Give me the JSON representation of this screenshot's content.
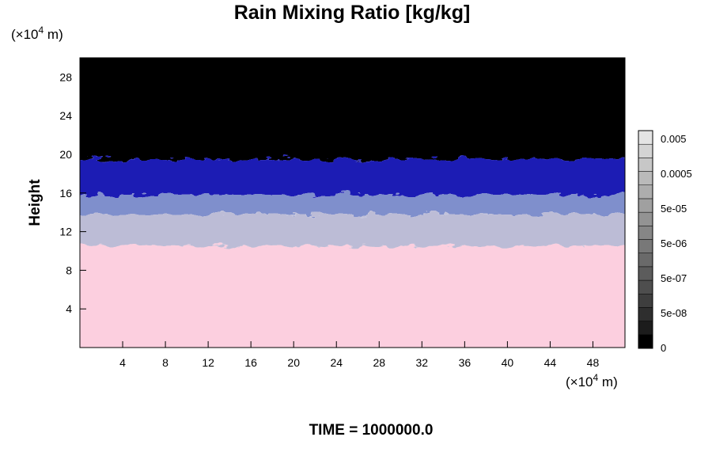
{
  "chart_data": {
    "type": "heatmap",
    "title": "Rain Mixing Ratio [kg/kg]",
    "ylabel": "Height",
    "xlabel": "",
    "x_unit_prefix": "(×10",
    "x_unit_exp": "4",
    "x_unit_suffix": " m)",
    "y_unit_prefix": "(×10",
    "y_unit_exp": "4",
    "y_unit_suffix": " m)",
    "xlim": [
      0,
      51
    ],
    "ylim": [
      0,
      30
    ],
    "x_ticks": [
      "4",
      "8",
      "12",
      "16",
      "20",
      "24",
      "28",
      "32",
      "36",
      "40",
      "44",
      "48"
    ],
    "x_tick_values": [
      4,
      8,
      12,
      16,
      20,
      24,
      28,
      32,
      36,
      40,
      44,
      48
    ],
    "y_ticks": [
      "4",
      "8",
      "12",
      "16",
      "20",
      "24",
      "28"
    ],
    "y_tick_values": [
      4,
      8,
      12,
      16,
      20,
      24,
      28
    ],
    "bands": [
      {
        "y0": 19.5,
        "y1": 30,
        "color": "#000000"
      },
      {
        "y0": 15.8,
        "y1": 19.5,
        "color": "#1a1ab4"
      },
      {
        "y0": 13.8,
        "y1": 15.8,
        "color": "#7f8fcc"
      },
      {
        "y0": 10.5,
        "y1": 13.8,
        "color": "#bcbcd6"
      },
      {
        "y0": 0,
        "y1": 10.5,
        "color": "#fccfdf"
      }
    ],
    "colorbar": {
      "labels": [
        "0",
        "5e-08",
        "5e-07",
        "5e-06",
        "5e-05",
        "0.0005",
        "0.005"
      ],
      "colors": [
        "#000000",
        "#1c1c1c",
        "#2e2e2e",
        "#3e3e3e",
        "#4e4e4e",
        "#5c5c5c",
        "#6a6a6a",
        "#787878",
        "#868686",
        "#939393",
        "#a0a0a0",
        "#adadad",
        "#bababa",
        "#c7c7c7",
        "#d4d4d4",
        "#e4e4e4"
      ]
    },
    "footer_label": "TIME = 1000000.0",
    "grid": false
  }
}
